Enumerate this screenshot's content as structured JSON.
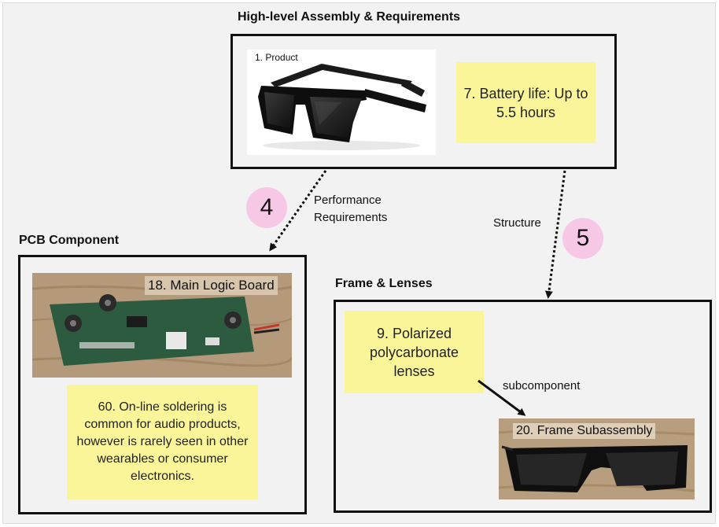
{
  "groups": {
    "assembly": {
      "title": "High-level Assembly & Requirements"
    },
    "pcb": {
      "title": "PCB Component"
    },
    "frame": {
      "title": "Frame & Lenses"
    }
  },
  "cards": {
    "product": {
      "label": "1. Product"
    },
    "battery": {
      "text": "7. Battery life: Up to 5.5 hours"
    },
    "main_logic_board": {
      "label": "18. Main Logic Board"
    },
    "soldering": {
      "text": "60. On-line soldering is common for audio products, however is rarely seen in other wearables or consumer electronics."
    },
    "lenses": {
      "text": "9. Polarized polycarbonate lenses"
    },
    "frame_subassembly": {
      "label": "20. Frame Subassembly"
    }
  },
  "edges": {
    "performance": {
      "badge": "4",
      "label": "Performance Requirements"
    },
    "structure": {
      "badge": "5",
      "label": "Structure"
    },
    "subcomponent": {
      "label": "subcomponent"
    }
  },
  "colors": {
    "sticky": "#fbf59a",
    "badge": "#f7c8e6",
    "border": "#111111"
  }
}
